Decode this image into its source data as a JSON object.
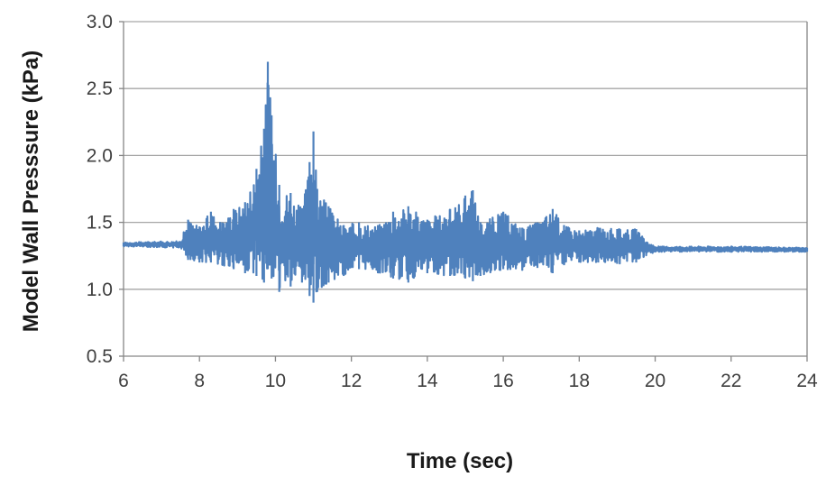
{
  "chart_data": {
    "type": "line",
    "title": "",
    "xlabel": "Time (sec)",
    "ylabel": "Model Wall Presssure (kPa)",
    "xlim": [
      6,
      24
    ],
    "ylim": [
      0.5,
      3.0
    ],
    "xticks": [
      6,
      8,
      10,
      12,
      14,
      16,
      18,
      20,
      22,
      24
    ],
    "yticks": [
      0.5,
      1.0,
      1.5,
      2.0,
      2.5,
      3.0
    ],
    "ytick_labels": [
      "0.5",
      "1.0",
      "1.5",
      "2.0",
      "2.5",
      "3.0"
    ],
    "grid": "horizontal",
    "legend": "none",
    "line_color": "#4f81bd",
    "series": [
      {
        "envelope_max": [
          [
            6.0,
            1.35
          ],
          [
            7.5,
            1.36
          ],
          [
            7.7,
            1.52
          ],
          [
            8.0,
            1.47
          ],
          [
            8.3,
            1.58
          ],
          [
            8.6,
            1.5
          ],
          [
            8.9,
            1.6
          ],
          [
            9.2,
            1.65
          ],
          [
            9.5,
            1.9
          ],
          [
            9.7,
            2.2
          ],
          [
            9.8,
            2.7
          ],
          [
            9.9,
            2.3
          ],
          [
            10.1,
            1.78
          ],
          [
            10.4,
            1.72
          ],
          [
            10.7,
            1.6
          ],
          [
            10.9,
            1.95
          ],
          [
            11.0,
            2.18
          ],
          [
            11.1,
            1.75
          ],
          [
            11.4,
            1.62
          ],
          [
            11.8,
            1.48
          ],
          [
            12.2,
            1.5
          ],
          [
            12.7,
            1.48
          ],
          [
            13.1,
            1.58
          ],
          [
            13.5,
            1.62
          ],
          [
            14.0,
            1.52
          ],
          [
            14.6,
            1.6
          ],
          [
            15.0,
            1.7
          ],
          [
            15.2,
            1.74
          ],
          [
            15.4,
            1.5
          ],
          [
            16.0,
            1.58
          ],
          [
            16.5,
            1.46
          ],
          [
            16.9,
            1.5
          ],
          [
            17.3,
            1.6
          ],
          [
            17.6,
            1.48
          ],
          [
            18.0,
            1.44
          ],
          [
            18.5,
            1.46
          ],
          [
            19.0,
            1.45
          ],
          [
            19.5,
            1.45
          ],
          [
            19.7,
            1.38
          ],
          [
            20.0,
            1.32
          ],
          [
            22.0,
            1.32
          ],
          [
            24.0,
            1.31
          ]
        ],
        "envelope_min": [
          [
            6.0,
            1.32
          ],
          [
            7.5,
            1.31
          ],
          [
            7.7,
            1.22
          ],
          [
            8.0,
            1.2
          ],
          [
            8.3,
            1.2
          ],
          [
            8.6,
            1.18
          ],
          [
            8.9,
            1.15
          ],
          [
            9.2,
            1.12
          ],
          [
            9.5,
            1.1
          ],
          [
            9.7,
            1.05
          ],
          [
            9.8,
            1.15
          ],
          [
            9.9,
            1.08
          ],
          [
            10.1,
            0.98
          ],
          [
            10.4,
            1.02
          ],
          [
            10.7,
            1.05
          ],
          [
            10.9,
            0.95
          ],
          [
            11.0,
            0.9
          ],
          [
            11.1,
            0.98
          ],
          [
            11.4,
            1.05
          ],
          [
            11.8,
            1.1
          ],
          [
            12.2,
            1.15
          ],
          [
            12.7,
            1.12
          ],
          [
            13.1,
            1.08
          ],
          [
            13.5,
            1.05
          ],
          [
            14.0,
            1.12
          ],
          [
            14.6,
            1.1
          ],
          [
            15.0,
            1.08
          ],
          [
            15.2,
            1.06
          ],
          [
            15.4,
            1.1
          ],
          [
            16.0,
            1.15
          ],
          [
            16.5,
            1.14
          ],
          [
            16.9,
            1.16
          ],
          [
            17.3,
            1.12
          ],
          [
            17.6,
            1.18
          ],
          [
            18.0,
            1.2
          ],
          [
            18.5,
            1.2
          ],
          [
            19.0,
            1.19
          ],
          [
            19.5,
            1.2
          ],
          [
            19.7,
            1.24
          ],
          [
            20.0,
            1.28
          ],
          [
            22.0,
            1.28
          ],
          [
            24.0,
            1.28
          ]
        ]
      }
    ]
  }
}
